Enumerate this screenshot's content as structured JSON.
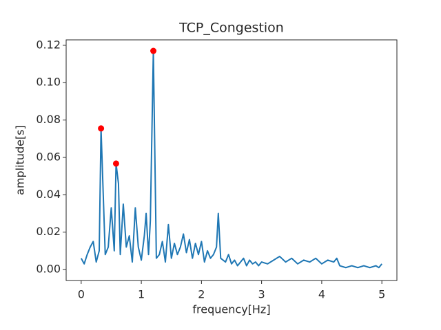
{
  "chart_data": {
    "type": "line",
    "title": "TCP_Congestion",
    "x_label": "frequency[Hz]",
    "y_label": "amplitude[s]",
    "x": [
      0.0,
      0.05,
      0.1,
      0.15,
      0.2,
      0.25,
      0.3,
      0.33,
      0.4,
      0.45,
      0.5,
      0.55,
      0.58,
      0.62,
      0.65,
      0.7,
      0.75,
      0.8,
      0.85,
      0.9,
      0.95,
      1.0,
      1.05,
      1.08,
      1.12,
      1.15,
      1.2,
      1.25,
      1.3,
      1.35,
      1.4,
      1.45,
      1.5,
      1.55,
      1.6,
      1.65,
      1.7,
      1.75,
      1.8,
      1.85,
      1.9,
      1.95,
      2.0,
      2.05,
      2.1,
      2.15,
      2.2,
      2.25,
      2.28,
      2.32,
      2.4,
      2.45,
      2.5,
      2.55,
      2.6,
      2.65,
      2.7,
      2.75,
      2.8,
      2.85,
      2.9,
      2.95,
      3.0,
      3.1,
      3.2,
      3.3,
      3.4,
      3.5,
      3.6,
      3.7,
      3.8,
      3.9,
      4.0,
      4.1,
      4.2,
      4.25,
      4.3,
      4.4,
      4.5,
      4.6,
      4.7,
      4.8,
      4.9,
      4.95,
      5.0
    ],
    "series": [
      {
        "color": "#1f77b4",
        "values": [
          0.006,
          0.003,
          0.008,
          0.012,
          0.015,
          0.004,
          0.01,
          0.0755,
          0.008,
          0.012,
          0.033,
          0.01,
          0.0567,
          0.046,
          0.008,
          0.035,
          0.012,
          0.018,
          0.004,
          0.033,
          0.012,
          0.005,
          0.018,
          0.03,
          0.008,
          0.026,
          0.117,
          0.006,
          0.008,
          0.015,
          0.004,
          0.024,
          0.006,
          0.014,
          0.008,
          0.012,
          0.019,
          0.009,
          0.016,
          0.006,
          0.014,
          0.008,
          0.015,
          0.004,
          0.01,
          0.006,
          0.008,
          0.012,
          0.03,
          0.006,
          0.004,
          0.008,
          0.003,
          0.005,
          0.002,
          0.004,
          0.006,
          0.002,
          0.005,
          0.003,
          0.004,
          0.002,
          0.004,
          0.003,
          0.005,
          0.007,
          0.004,
          0.006,
          0.003,
          0.005,
          0.004,
          0.006,
          0.003,
          0.005,
          0.004,
          0.006,
          0.002,
          0.001,
          0.002,
          0.001,
          0.002,
          0.001,
          0.002,
          0.001,
          0.003
        ]
      }
    ],
    "peaks": {
      "type": "scatter",
      "color": "#ff0000",
      "x": [
        0.33,
        0.58,
        1.2
      ],
      "values": [
        0.0755,
        0.0567,
        0.117
      ]
    },
    "xlim": [
      -0.25,
      5.25
    ],
    "ylim": [
      -0.0059,
      0.1229
    ],
    "xticks": [
      0,
      1,
      2,
      3,
      4,
      5
    ],
    "yticks": [
      {
        "value": 0,
        "label": "0.00"
      },
      0.02,
      0.04,
      0.06,
      0.08,
      {
        "value": 0.1,
        "label": "0.10"
      },
      0.12
    ]
  }
}
